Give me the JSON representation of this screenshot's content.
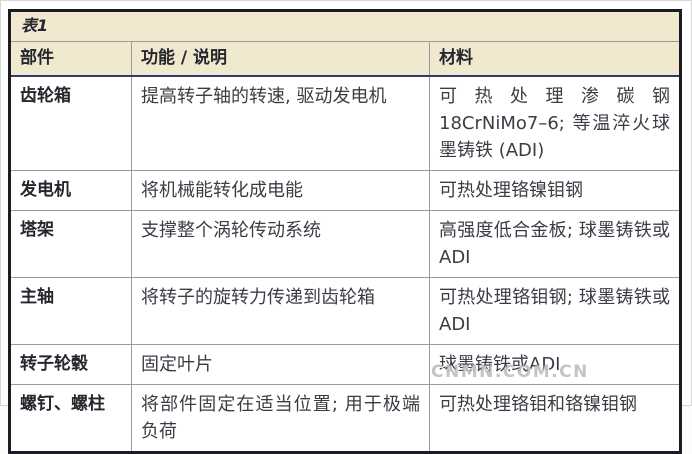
{
  "table": {
    "title": "表1",
    "columns": [
      {
        "label": "部件"
      },
      {
        "label": "功能 / 说明"
      },
      {
        "label": "材料"
      }
    ],
    "rows": [
      {
        "part": "齿轮箱",
        "function": "提高转子轴的转速, 驱动发电机",
        "material": "可热处理渗碳钢18CrNiMo7–6; 等温淬火球墨铸铁 (ADI)"
      },
      {
        "part": "发电机",
        "function": "将机械能转化成电能",
        "material": "可热处理铬镍钼钢"
      },
      {
        "part": "塔架",
        "function": "支撑整个涡轮传动系统",
        "material": "高强度低合金板; 球墨铸铁或ADI"
      },
      {
        "part": "主轴",
        "function": "将转子的旋转力传递到齿轮箱",
        "material": "可热处理铬钼钢; 球墨铸铁或ADI"
      },
      {
        "part": "转子轮毂",
        "function": "固定叶片",
        "material": "球墨铸铁或ADI"
      },
      {
        "part": "螺钉、螺柱",
        "function": "将部件固定在适当位置; 用于极端负荷",
        "material": "可热处理铬钼和铬镍钼钢"
      }
    ]
  },
  "watermark": "CNMN.COM.CN",
  "colors": {
    "header_background": "#f1e8d0",
    "outer_border": "#1b1b24",
    "grid_line": "#9a9aa2",
    "header_underline": "#333a72",
    "text": "#3c3c45"
  }
}
